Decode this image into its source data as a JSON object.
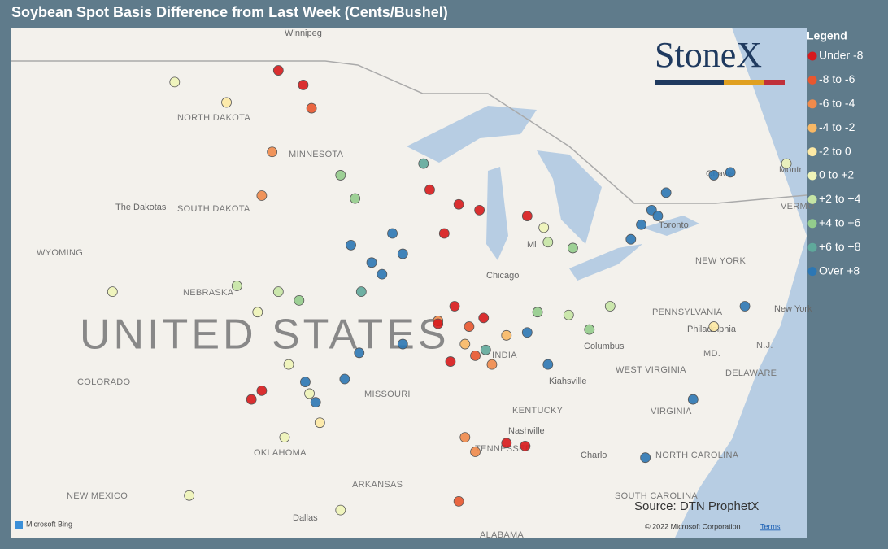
{
  "header": {
    "title": "Soybean Spot Basis Difference from Last Week (Cents/Bushel)"
  },
  "logo": "StoneX",
  "source": "Source: DTN ProphetX",
  "attribution": {
    "provider": "Microsoft Bing",
    "copyright": "© 2022 Microsoft Corporation",
    "terms": "Terms"
  },
  "legend": {
    "title": "Legend",
    "items": [
      {
        "label": "Under -8",
        "color": "#d7191c"
      },
      {
        "label": "-8 to -6",
        "color": "#e8572f"
      },
      {
        "label": "-6 to -4",
        "color": "#f08a4b"
      },
      {
        "label": "-4 to -2",
        "color": "#f8b865"
      },
      {
        "label": "-2 to 0",
        "color": "#fde9a4"
      },
      {
        "label": "0 to +2",
        "color": "#eef4b8"
      },
      {
        "label": "+2 to +4",
        "color": "#c6e5a5"
      },
      {
        "label": "+4 to +6",
        "color": "#93cc8c"
      },
      {
        "label": "+6 to +8",
        "color": "#5fa99b"
      },
      {
        "label": "Over +8",
        "color": "#2c77b4"
      }
    ]
  },
  "map_labels": [
    "Winnipeg",
    "NORTH DAKOTA",
    "MINNESOTA",
    "The Dakotas",
    "SOUTH DAKOTA",
    "WYOMING",
    "NEBRASKA",
    "UNITED STATES",
    "COLORADO",
    "MISSOURI",
    "OKLAHOMA",
    "NEW MEXICO",
    "ARKANSAS",
    "Dallas",
    "TENNESSEE",
    "Nashville",
    "KENTUCKY",
    "Kiahsville",
    "Chicago",
    "Columbus",
    "WEST VIRGINIA",
    "VIRGINIA",
    "NORTH CAROLINA",
    "SOUTH CAROLINA",
    "Charlo",
    "PENNSYLVANIA",
    "Philadelphia",
    "NEW YORK",
    "New York",
    "Toronto",
    "Ottawa",
    "Montr",
    "MD.",
    "DELAWARE",
    "N.J.",
    "VERMO",
    "ALABAMA",
    "INDIA",
    "Mi"
  ],
  "points": [
    {
      "lon": -98.5,
      "lat": 48.6,
      "legend_index": 0
    },
    {
      "lon": -97.3,
      "lat": 48.1,
      "legend_index": 0
    },
    {
      "lon": -96.9,
      "lat": 47.3,
      "legend_index": 1
    },
    {
      "lon": -98.8,
      "lat": 45.8,
      "legend_index": 2
    },
    {
      "lon": -99.3,
      "lat": 44.3,
      "legend_index": 2
    },
    {
      "lon": -103.5,
      "lat": 48.2,
      "legend_index": 5
    },
    {
      "lon": -101.0,
      "lat": 47.5,
      "legend_index": 4
    },
    {
      "lon": -95.5,
      "lat": 45.0,
      "legend_index": 7
    },
    {
      "lon": -94.8,
      "lat": 44.2,
      "legend_index": 7
    },
    {
      "lon": -95.0,
      "lat": 42.6,
      "legend_index": 9
    },
    {
      "lon": -94.0,
      "lat": 42.0,
      "legend_index": 9
    },
    {
      "lon": -93.5,
      "lat": 41.6,
      "legend_index": 9
    },
    {
      "lon": -92.5,
      "lat": 42.3,
      "legend_index": 9
    },
    {
      "lon": -93.0,
      "lat": 43.0,
      "legend_index": 9
    },
    {
      "lon": -94.5,
      "lat": 41.0,
      "legend_index": 8
    },
    {
      "lon": -91.2,
      "lat": 44.5,
      "legend_index": 0
    },
    {
      "lon": -89.8,
      "lat": 44.0,
      "legend_index": 0
    },
    {
      "lon": -88.8,
      "lat": 43.8,
      "legend_index": 0
    },
    {
      "lon": -90.5,
      "lat": 43.0,
      "legend_index": 0
    },
    {
      "lon": -90.0,
      "lat": 40.5,
      "legend_index": 0
    },
    {
      "lon": -89.3,
      "lat": 39.8,
      "legend_index": 1
    },
    {
      "lon": -88.6,
      "lat": 40.1,
      "legend_index": 0
    },
    {
      "lon": -89.0,
      "lat": 38.8,
      "legend_index": 1
    },
    {
      "lon": -90.8,
      "lat": 40.0,
      "legend_index": 2
    },
    {
      "lon": -89.5,
      "lat": 39.2,
      "legend_index": 3
    },
    {
      "lon": -88.2,
      "lat": 38.5,
      "legend_index": 2
    },
    {
      "lon": -87.5,
      "lat": 39.5,
      "legend_index": 3
    },
    {
      "lon": -86.5,
      "lat": 39.6,
      "legend_index": 9
    },
    {
      "lon": -85.5,
      "lat": 38.5,
      "legend_index": 9
    },
    {
      "lon": -86.0,
      "lat": 40.3,
      "legend_index": 7
    },
    {
      "lon": -84.5,
      "lat": 40.2,
      "legend_index": 6
    },
    {
      "lon": -83.5,
      "lat": 39.7,
      "legend_index": 7
    },
    {
      "lon": -82.5,
      "lat": 40.5,
      "legend_index": 6
    },
    {
      "lon": -98.5,
      "lat": 41.0,
      "legend_index": 6
    },
    {
      "lon": -97.5,
      "lat": 40.7,
      "legend_index": 7
    },
    {
      "lon": -99.5,
      "lat": 40.3,
      "legend_index": 5
    },
    {
      "lon": -100.5,
      "lat": 41.2,
      "legend_index": 6
    },
    {
      "lon": -98.0,
      "lat": 38.5,
      "legend_index": 5
    },
    {
      "lon": -97.0,
      "lat": 37.5,
      "legend_index": 5
    },
    {
      "lon": -96.5,
      "lat": 36.5,
      "legend_index": 4
    },
    {
      "lon": -98.2,
      "lat": 36.0,
      "legend_index": 5
    },
    {
      "lon": -99.8,
      "lat": 37.3,
      "legend_index": 0
    },
    {
      "lon": -99.3,
      "lat": 37.6,
      "legend_index": 0
    },
    {
      "lon": -97.2,
      "lat": 37.9,
      "legend_index": 9
    },
    {
      "lon": -96.7,
      "lat": 37.2,
      "legend_index": 9
    },
    {
      "lon": -95.3,
      "lat": 38.0,
      "legend_index": 9
    },
    {
      "lon": -94.6,
      "lat": 38.9,
      "legend_index": 9
    },
    {
      "lon": -92.5,
      "lat": 39.2,
      "legend_index": 9
    },
    {
      "lon": -90.8,
      "lat": 39.9,
      "legend_index": 0
    },
    {
      "lon": -90.2,
      "lat": 38.6,
      "legend_index": 0
    },
    {
      "lon": -89.5,
      "lat": 36.0,
      "legend_index": 2
    },
    {
      "lon": -89.0,
      "lat": 35.5,
      "legend_index": 2
    },
    {
      "lon": -87.5,
      "lat": 35.8,
      "legend_index": 0
    },
    {
      "lon": -86.6,
      "lat": 35.7,
      "legend_index": 0
    },
    {
      "lon": -89.8,
      "lat": 33.8,
      "legend_index": 1
    },
    {
      "lon": -80.5,
      "lat": 43.8,
      "legend_index": 9
    },
    {
      "lon": -81.0,
      "lat": 43.3,
      "legend_index": 9
    },
    {
      "lon": -79.8,
      "lat": 44.4,
      "legend_index": 9
    },
    {
      "lon": -80.2,
      "lat": 43.6,
      "legend_index": 9
    },
    {
      "lon": -81.5,
      "lat": 42.8,
      "legend_index": 9
    },
    {
      "lon": -77.5,
      "lat": 45.0,
      "legend_index": 9
    },
    {
      "lon": -76.7,
      "lat": 45.1,
      "legend_index": 9
    },
    {
      "lon": -84.3,
      "lat": 42.5,
      "legend_index": 7
    },
    {
      "lon": -85.5,
      "lat": 42.7,
      "legend_index": 6
    },
    {
      "lon": -85.7,
      "lat": 43.2,
      "legend_index": 5
    },
    {
      "lon": -86.5,
      "lat": 43.6,
      "legend_index": 0
    },
    {
      "lon": -80.8,
      "lat": 35.3,
      "legend_index": 9
    },
    {
      "lon": -78.5,
      "lat": 37.3,
      "legend_index": 9
    },
    {
      "lon": -76.0,
      "lat": 40.5,
      "legend_index": 9
    },
    {
      "lon": -74.0,
      "lat": 45.4,
      "legend_index": 5
    },
    {
      "lon": -77.5,
      "lat": 39.8,
      "legend_index": 4
    },
    {
      "lon": -95.5,
      "lat": 33.5,
      "legend_index": 5
    },
    {
      "lon": -102.8,
      "lat": 34.0,
      "legend_index": 5
    },
    {
      "lon": -106.5,
      "lat": 41.0,
      "legend_index": 5
    },
    {
      "lon": -91.5,
      "lat": 45.4,
      "legend_index": 8
    },
    {
      "lon": -88.5,
      "lat": 39.0,
      "legend_index": 8
    }
  ]
}
